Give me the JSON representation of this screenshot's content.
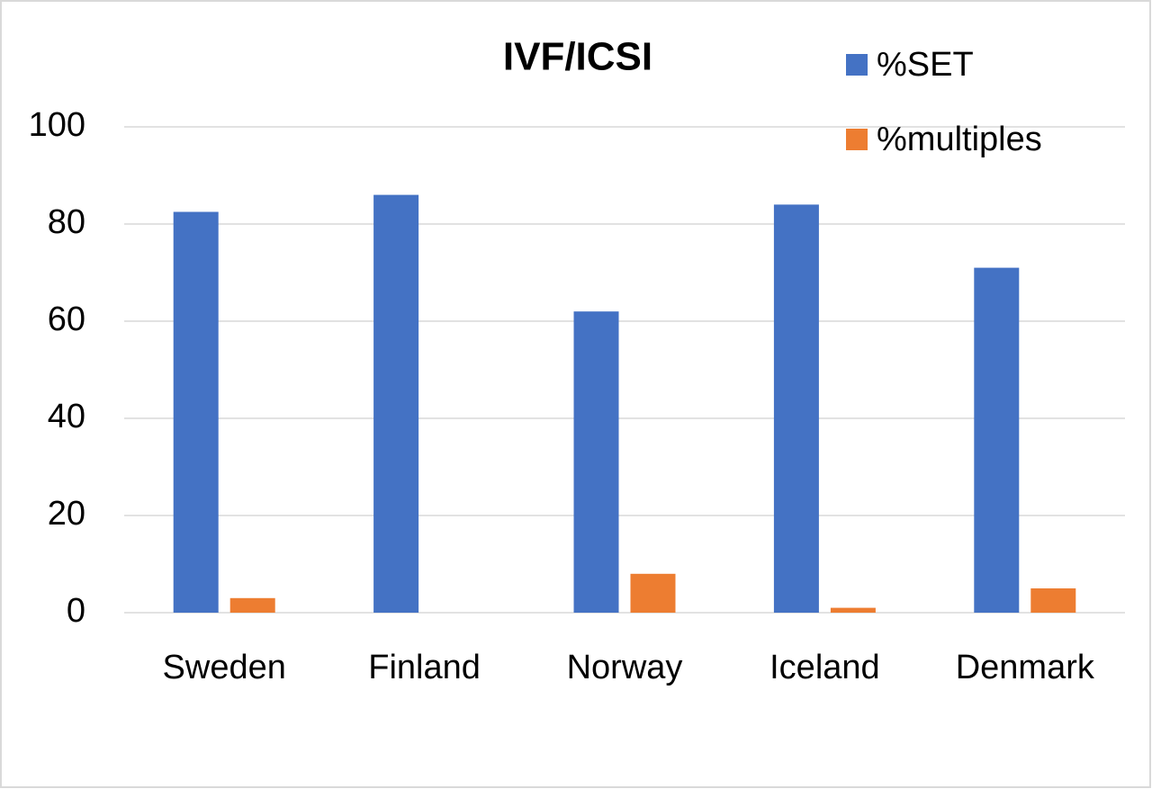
{
  "chart_data": {
    "type": "bar",
    "title": "IVF/ICSI",
    "categories": [
      "Sweden",
      "Finland",
      "Norway",
      "Iceland",
      "Denmark"
    ],
    "series": [
      {
        "name": "%SET",
        "color": "#4472c4",
        "values": [
          82.5,
          86,
          62,
          84,
          71
        ]
      },
      {
        "name": "%multiples",
        "color": "#ed7d31",
        "values": [
          3,
          0,
          8,
          1,
          5
        ]
      }
    ],
    "ylim": [
      0,
      100
    ],
    "yticks": [
      0,
      20,
      40,
      60,
      80,
      100
    ],
    "grid": true,
    "legend": "top-right"
  }
}
